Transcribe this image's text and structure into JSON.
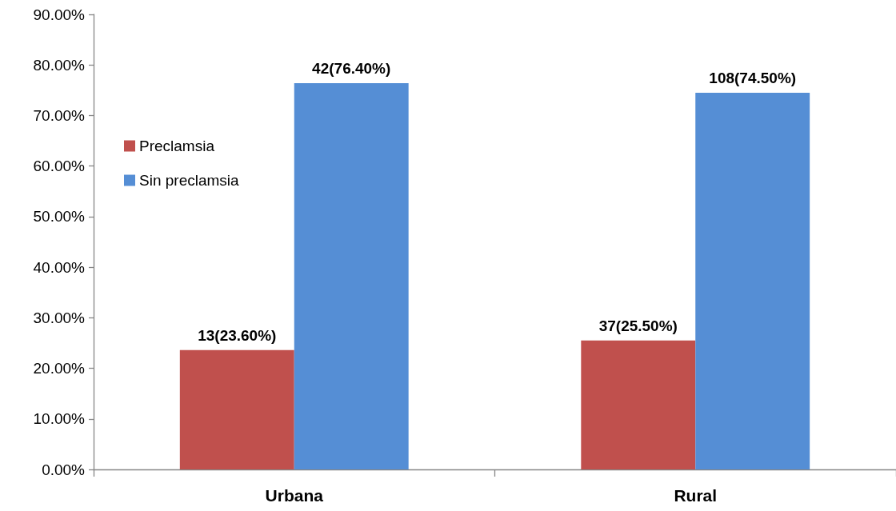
{
  "chart_data": {
    "type": "bar",
    "categories": [
      "Urbana",
      "Rural"
    ],
    "series": [
      {
        "name": "Preclamsia",
        "color": "#c0504d",
        "values": [
          23.6,
          25.5
        ],
        "value_labels": [
          "13(23.60%)",
          "37(25.50%)"
        ]
      },
      {
        "name": "Sin preclamsia",
        "color": "#558ed5",
        "values": [
          76.4,
          74.5
        ],
        "value_labels": [
          "42(76.40%)",
          "108(74.50%)"
        ]
      }
    ],
    "ylim": [
      0,
      90
    ],
    "yticks": [
      {
        "value": 0,
        "label": "0.00%"
      },
      {
        "value": 10,
        "label": "10.00%"
      },
      {
        "value": 20,
        "label": "20.00%"
      },
      {
        "value": 30,
        "label": "30.00%"
      },
      {
        "value": 40,
        "label": "40.00%"
      },
      {
        "value": 50,
        "label": "50.00%"
      },
      {
        "value": 60,
        "label": "60.00%"
      },
      {
        "value": 70,
        "label": "70.00%"
      },
      {
        "value": 80,
        "label": "80.00%"
      },
      {
        "value": 90,
        "label": "90.00%"
      }
    ],
    "grid": false,
    "legend": "top left"
  }
}
